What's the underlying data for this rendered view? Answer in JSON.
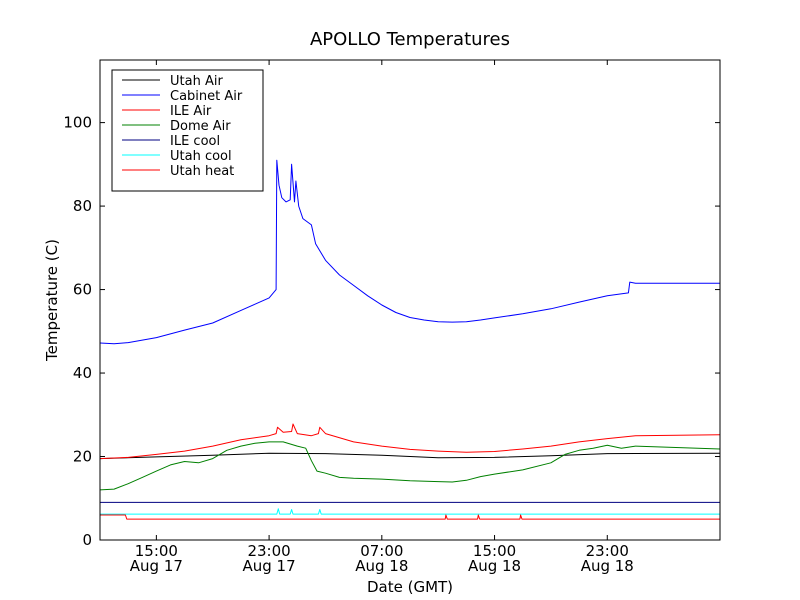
{
  "chart_data": {
    "type": "line",
    "title": "APOLLO Temperatures",
    "xlabel": "Date (GMT)",
    "ylabel": "Temperature (C)",
    "x_unit": "hours since Aug 17 11:00 GMT",
    "xlim": [
      0,
      44
    ],
    "ylim": [
      0,
      115
    ],
    "yticks": [
      0,
      20,
      40,
      60,
      80,
      100
    ],
    "xticks": [
      {
        "x": 4,
        "time": "15:00",
        "date": "Aug 17"
      },
      {
        "x": 12,
        "time": "23:00",
        "date": "Aug 17"
      },
      {
        "x": 20,
        "time": "07:00",
        "date": "Aug 18"
      },
      {
        "x": 28,
        "time": "15:00",
        "date": "Aug 18"
      },
      {
        "x": 36,
        "time": "23:00",
        "date": "Aug 18"
      }
    ],
    "legend_position": "top-left",
    "series": [
      {
        "name": "Utah Air",
        "color": "#000000",
        "points": [
          [
            0,
            19.5
          ],
          [
            4,
            19.9
          ],
          [
            8,
            20.3
          ],
          [
            12,
            20.8
          ],
          [
            16,
            20.7
          ],
          [
            20,
            20.3
          ],
          [
            24,
            19.7
          ],
          [
            28,
            19.8
          ],
          [
            32,
            20.2
          ],
          [
            36,
            20.7
          ],
          [
            44,
            20.8
          ]
        ]
      },
      {
        "name": "Cabinet Air",
        "color": "#0000ff",
        "points": [
          [
            0,
            47.2
          ],
          [
            1,
            47
          ],
          [
            2,
            47.3
          ],
          [
            4,
            48.5
          ],
          [
            6,
            50.3
          ],
          [
            8,
            52
          ],
          [
            10,
            55
          ],
          [
            11,
            56.5
          ],
          [
            12,
            58
          ],
          [
            12.5,
            60
          ],
          [
            12.55,
            91
          ],
          [
            12.7,
            85
          ],
          [
            12.9,
            82
          ],
          [
            13.2,
            81
          ],
          [
            13.5,
            81.5
          ],
          [
            13.6,
            90
          ],
          [
            13.8,
            81
          ],
          [
            13.9,
            86
          ],
          [
            14.1,
            80
          ],
          [
            14.4,
            77
          ],
          [
            15,
            75.5
          ],
          [
            15.3,
            71
          ],
          [
            16,
            67
          ],
          [
            17,
            63.5
          ],
          [
            18,
            61
          ],
          [
            19,
            58.5
          ],
          [
            20,
            56.3
          ],
          [
            21,
            54.5
          ],
          [
            22,
            53.3
          ],
          [
            23,
            52.7
          ],
          [
            24,
            52.3
          ],
          [
            25,
            52.2
          ],
          [
            26,
            52.3
          ],
          [
            27,
            52.7
          ],
          [
            28,
            53.2
          ],
          [
            30,
            54.2
          ],
          [
            32,
            55.4
          ],
          [
            34,
            57
          ],
          [
            36,
            58.5
          ],
          [
            37.5,
            59.2
          ],
          [
            37.6,
            61.8
          ],
          [
            38,
            61.5
          ],
          [
            44,
            61.5
          ]
        ]
      },
      {
        "name": "ILE Air",
        "color": "#ff0000",
        "points": [
          [
            0,
            19.5
          ],
          [
            2,
            19.8
          ],
          [
            4,
            20.5
          ],
          [
            6,
            21.3
          ],
          [
            8,
            22.5
          ],
          [
            10,
            24
          ],
          [
            12,
            25
          ],
          [
            12.5,
            25.5
          ],
          [
            12.6,
            27
          ],
          [
            13,
            25.8
          ],
          [
            13.6,
            26
          ],
          [
            13.7,
            27.8
          ],
          [
            14,
            25.5
          ],
          [
            15,
            25
          ],
          [
            15.5,
            25.5
          ],
          [
            15.6,
            27
          ],
          [
            16,
            25.5
          ],
          [
            18,
            23.5
          ],
          [
            20,
            22.5
          ],
          [
            22,
            21.7
          ],
          [
            24,
            21.3
          ],
          [
            26,
            21
          ],
          [
            28,
            21.2
          ],
          [
            30,
            21.8
          ],
          [
            32,
            22.5
          ],
          [
            34,
            23.5
          ],
          [
            36,
            24.3
          ],
          [
            38,
            25
          ],
          [
            44,
            25.2
          ]
        ]
      },
      {
        "name": "Dome Air",
        "color": "#008000",
        "points": [
          [
            0,
            12
          ],
          [
            1,
            12.2
          ],
          [
            2,
            13.5
          ],
          [
            3,
            15
          ],
          [
            4,
            16.5
          ],
          [
            5,
            18
          ],
          [
            6,
            18.8
          ],
          [
            7,
            18.5
          ],
          [
            8,
            19.5
          ],
          [
            9,
            21.5
          ],
          [
            10,
            22.5
          ],
          [
            11,
            23.2
          ],
          [
            12,
            23.5
          ],
          [
            13,
            23.5
          ],
          [
            14,
            22.5
          ],
          [
            14.6,
            22
          ],
          [
            15,
            19
          ],
          [
            15.4,
            16.5
          ],
          [
            16,
            16
          ],
          [
            17,
            15
          ],
          [
            18,
            14.8
          ],
          [
            20,
            14.6
          ],
          [
            22,
            14.2
          ],
          [
            24,
            14
          ],
          [
            25,
            13.9
          ],
          [
            26,
            14.3
          ],
          [
            27,
            15.2
          ],
          [
            28,
            15.8
          ],
          [
            30,
            16.8
          ],
          [
            32,
            18.5
          ],
          [
            33,
            20.5
          ],
          [
            34,
            21.5
          ],
          [
            35,
            22
          ],
          [
            36,
            22.7
          ],
          [
            37,
            22
          ],
          [
            38,
            22.5
          ],
          [
            44,
            21.8
          ]
        ]
      },
      {
        "name": "ILE cool",
        "color": "#000080",
        "points": [
          [
            0,
            9
          ],
          [
            44,
            9
          ]
        ]
      },
      {
        "name": "Utah cool",
        "color": "#00ffff",
        "points": [
          [
            0,
            6.2
          ],
          [
            12.55,
            6.2
          ],
          [
            12.65,
            7.5
          ],
          [
            12.75,
            6.2
          ],
          [
            13.5,
            6.2
          ],
          [
            13.6,
            7.3
          ],
          [
            13.7,
            6.2
          ],
          [
            15.5,
            6.2
          ],
          [
            15.6,
            7.3
          ],
          [
            15.7,
            6.2
          ],
          [
            44,
            6.2
          ]
        ]
      },
      {
        "name": "Utah heat",
        "color": "#ff0000",
        "points": [
          [
            0,
            6
          ],
          [
            1.8,
            6
          ],
          [
            1.9,
            5
          ],
          [
            24.5,
            5
          ],
          [
            24.55,
            6
          ],
          [
            24.65,
            5
          ],
          [
            26.8,
            5
          ],
          [
            26.85,
            6
          ],
          [
            26.95,
            5
          ],
          [
            29.8,
            5
          ],
          [
            29.85,
            6
          ],
          [
            29.95,
            5
          ],
          [
            44,
            5
          ]
        ]
      }
    ]
  }
}
